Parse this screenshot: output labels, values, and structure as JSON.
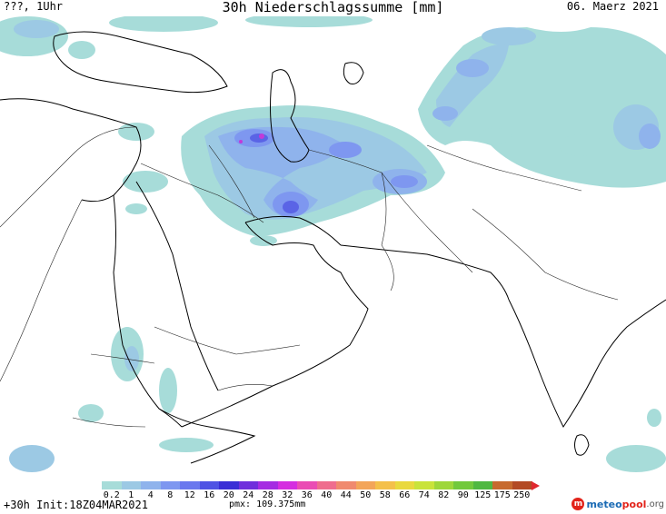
{
  "header": {
    "left": "???, 1Uhr",
    "title": "30h Niederschlagssumme [mm]",
    "right": "06. Maerz 2021"
  },
  "footer": {
    "run": "+30h Init:18Z04MAR2021",
    "pmx": "pmx: 109.375mm"
  },
  "logo": {
    "part1": "meteo",
    "part2": "pool",
    "part3": ".org"
  },
  "legend": {
    "labels": [
      "0.2",
      "1",
      "4",
      "8",
      "12",
      "16",
      "20",
      "24",
      "28",
      "32",
      "36",
      "40",
      "44",
      "50",
      "58",
      "66",
      "74",
      "82",
      "90",
      "125",
      "175",
      "250"
    ],
    "colors": [
      "#a7dcd9",
      "#9cc9e4",
      "#8fb3ec",
      "#7e97f0",
      "#6a78ee",
      "#4f53e4",
      "#3a2ed6",
      "#6f2fdc",
      "#a52ce2",
      "#d52de0",
      "#ea4cb4",
      "#ef6d8e",
      "#f08a6e",
      "#f3a559",
      "#f4c04a",
      "#e9d93e",
      "#c9e33a",
      "#9ed73a",
      "#72c93c",
      "#4fb841",
      "#c76a2e",
      "#b34a24"
    ],
    "arrow_color": "#e0282e"
  },
  "map": {
    "background": "#ffffff",
    "border_color": "#000000",
    "precip_colors": {
      "light": "#a7dcd9",
      "low": "#9cc9e4",
      "medium": "#8fb3ec",
      "moderate": "#7e97f0",
      "high": "#5a64e6",
      "peak": "#c23ad8"
    }
  }
}
